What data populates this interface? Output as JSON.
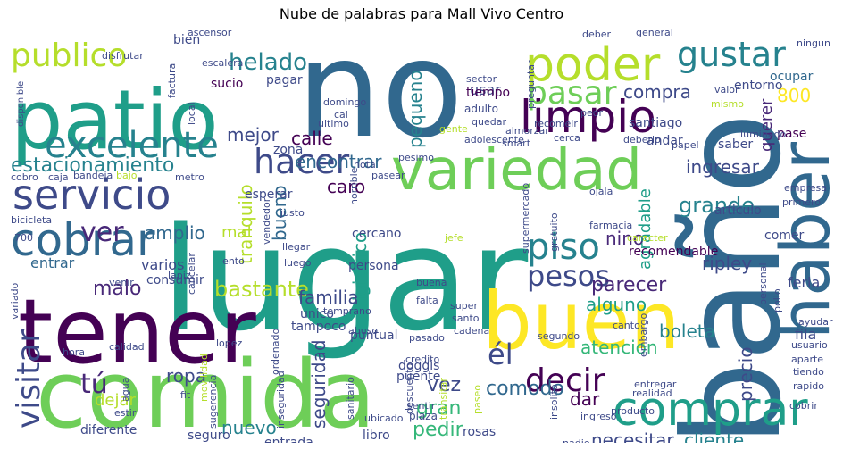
{
  "title": "Nube de palabras para Mall Vivo Centro",
  "palette": [
    "#440154",
    "#482878",
    "#3e4a89",
    "#31688e",
    "#26828e",
    "#1f9e89",
    "#35b779",
    "#6ece58",
    "#b5de2b",
    "#fde725"
  ],
  "words": [
    {
      "text": "lugar",
      "level": 10,
      "color": "#1f9e89"
    },
    {
      "text": "comida",
      "level": 10,
      "color": "#6ece58"
    },
    {
      "text": "no",
      "level": 10,
      "color": "#31688e"
    },
    {
      "text": "baño",
      "level": 10,
      "color": "#31688e"
    },
    {
      "text": "tener",
      "level": 9,
      "color": "#440154"
    },
    {
      "text": "patio",
      "level": 9,
      "color": "#1f9e89"
    },
    {
      "text": "haber",
      "level": 8,
      "color": "#31688e"
    },
    {
      "text": "buen",
      "level": 8,
      "color": "#fde725"
    },
    {
      "text": "variedad",
      "level": 7,
      "color": "#6ece58"
    },
    {
      "text": "poder",
      "level": 6,
      "color": "#b5de2b"
    },
    {
      "text": "comprar",
      "level": 6,
      "color": "#1f9e89"
    },
    {
      "text": "cobrar",
      "level": 6,
      "color": "#31688e"
    },
    {
      "text": "servicio",
      "level": 6,
      "color": "#3e4a89"
    },
    {
      "text": "limpio",
      "level": 6,
      "color": "#440154"
    },
    {
      "text": "excelente",
      "level": 5,
      "color": "#26828e"
    },
    {
      "text": "gustar",
      "level": 5,
      "color": "#26828e"
    },
    {
      "text": "publico",
      "level": 5,
      "color": "#b5de2b"
    },
    {
      "text": "hacer",
      "level": 5,
      "color": "#3e4a89"
    },
    {
      "text": "pasar",
      "level": 5,
      "color": "#6ece58"
    },
    {
      "text": "visitar",
      "level": 5,
      "color": "#3e4a89"
    },
    {
      "text": "decir",
      "level": 5,
      "color": "#440154"
    },
    {
      "text": "piso",
      "level": 5,
      "color": "#26828e"
    },
    {
      "text": "pesos",
      "level": 4,
      "color": "#3e4a89"
    },
    {
      "text": "él",
      "level": 4,
      "color": "#3e4a89"
    },
    {
      "text": "tú",
      "level": 4,
      "color": "#482878"
    },
    {
      "text": "ver",
      "level": 4,
      "color": "#482878"
    },
    {
      "text": "estacionamiento",
      "level": 3,
      "color": "#26828e"
    },
    {
      "text": "helado",
      "level": 3,
      "color": "#26828e"
    },
    {
      "text": "mejor",
      "level": 3,
      "color": "#3e4a89"
    },
    {
      "text": "grande",
      "level": 3,
      "color": "#26828e"
    },
    {
      "text": "comodo",
      "level": 3,
      "color": "#31688e"
    },
    {
      "text": "parecer",
      "level": 3,
      "color": "#482878"
    },
    {
      "text": "ripley",
      "level": 3,
      "color": "#3e4a89"
    },
    {
      "text": "ingresar",
      "level": 3,
      "color": "#3e4a89"
    },
    {
      "text": "boleta",
      "level": 3,
      "color": "#26828e"
    },
    {
      "text": "bastante",
      "level": 3,
      "color": "#b5de2b"
    },
    {
      "text": "malo",
      "level": 3,
      "color": "#482878"
    },
    {
      "text": "amplio",
      "level": 3,
      "color": "#31688e"
    },
    {
      "text": "bueno",
      "level": 3,
      "color": "#31688e"
    },
    {
      "text": "calle",
      "level": 3,
      "color": "#440154"
    },
    {
      "text": "encontrar",
      "level": 3,
      "color": "#31688e"
    },
    {
      "text": "pequeno",
      "level": 3,
      "color": "#26828e"
    },
    {
      "text": "compra",
      "level": 3,
      "color": "#3e4a89"
    },
    {
      "text": "800",
      "level": 3,
      "color": "#fde725"
    },
    {
      "text": "caro",
      "level": 3,
      "color": "#440154"
    },
    {
      "text": "nino",
      "level": 3,
      "color": "#482878"
    },
    {
      "text": "familia",
      "level": 3,
      "color": "#3e4a89"
    },
    {
      "text": "alguno",
      "level": 3,
      "color": "#1f9e89"
    },
    {
      "text": "vez",
      "level": 3,
      "color": "#3e4a89"
    },
    {
      "text": "gran",
      "level": 3,
      "color": "#35b779"
    },
    {
      "text": "pedir",
      "level": 3,
      "color": "#35b779"
    },
    {
      "text": "dar",
      "level": 3,
      "color": "#440154"
    },
    {
      "text": "ropa",
      "level": 3,
      "color": "#3e4a89"
    },
    {
      "text": "nuevo",
      "level": 3,
      "color": "#26828e"
    },
    {
      "text": "seguridad",
      "level": 3,
      "color": "#3e4a89"
    },
    {
      "text": "precio",
      "level": 3,
      "color": "#3e4a89"
    },
    {
      "text": "necesitar",
      "level": 3,
      "color": "#3e4a89"
    },
    {
      "text": "cliente",
      "level": 3,
      "color": "#26828e"
    },
    {
      "text": "dejar",
      "level": 3,
      "color": "#b5de2b"
    },
    {
      "text": "atencion",
      "level": 3,
      "color": "#35b779"
    },
    {
      "text": "higienico",
      "level": 3,
      "color": "#1f9e89"
    },
    {
      "text": "tranquilo",
      "level": 3,
      "color": "#b5de2b"
    },
    {
      "text": "mal",
      "level": 3,
      "color": "#b5de2b"
    },
    {
      "text": "varios",
      "level": 2,
      "color": "#3e4a89"
    },
    {
      "text": "entrar",
      "level": 2,
      "color": "#31688e"
    },
    {
      "text": "querer",
      "level": 2,
      "color": "#482878"
    },
    {
      "text": "comer",
      "level": 2,
      "color": "#3e4a89"
    },
    {
      "text": "feria",
      "level": 2,
      "color": "#3e4a89"
    },
    {
      "text": "fila",
      "level": 2,
      "color": "#3e4a89"
    },
    {
      "text": "agradable",
      "level": 2,
      "color": "#1f9e89"
    },
    {
      "text": "recomendable",
      "level": 2,
      "color": "#440154"
    },
    {
      "text": "bien",
      "level": 2,
      "color": "#3e4a89"
    },
    {
      "text": "sucio",
      "level": 2,
      "color": "#440154"
    },
    {
      "text": "pagar",
      "level": 2,
      "color": "#3e4a89"
    },
    {
      "text": "usar",
      "level": 2,
      "color": "#3e4a89"
    },
    {
      "text": "tiempo",
      "level": 2,
      "color": "#440154"
    },
    {
      "text": "andar",
      "level": 2,
      "color": "#3e4a89"
    },
    {
      "text": "saber",
      "level": 2,
      "color": "#3e4a89"
    },
    {
      "text": "santiago",
      "level": 2,
      "color": "#3e4a89"
    },
    {
      "text": "entorno",
      "level": 2,
      "color": "#3e4a89"
    },
    {
      "text": "ocupar",
      "level": 2,
      "color": "#31688e"
    },
    {
      "text": "pase",
      "level": 2,
      "color": "#440154"
    },
    {
      "text": "puente",
      "level": 2,
      "color": "#3e4a89"
    },
    {
      "text": "puntual",
      "level": 2,
      "color": "#3e4a89"
    },
    {
      "text": "rosas",
      "level": 2,
      "color": "#3e4a89"
    },
    {
      "text": "libro",
      "level": 2,
      "color": "#3e4a89"
    },
    {
      "text": "acceso",
      "level": 2,
      "color": "#3e4a89"
    },
    {
      "text": "diferente",
      "level": 2,
      "color": "#3e4a89"
    },
    {
      "text": "seguro",
      "level": 2,
      "color": "#3e4a89"
    },
    {
      "text": "entrada",
      "level": 2,
      "color": "#3e4a89"
    },
    {
      "text": "unico",
      "level": 2,
      "color": "#3e4a89"
    },
    {
      "text": "tampoco",
      "level": 2,
      "color": "#3e4a89"
    },
    {
      "text": "consumir",
      "level": 2,
      "color": "#3e4a89"
    },
    {
      "text": "doggis",
      "level": 2,
      "color": "#3e4a89"
    },
    {
      "text": "cercano",
      "level": 2,
      "color": "#3e4a89"
    },
    {
      "text": "persona",
      "level": 2,
      "color": "#3e4a89"
    },
    {
      "text": "esperar",
      "level": 2,
      "color": "#3e4a89"
    },
    {
      "text": "zona",
      "level": 2,
      "color": "#3e4a89"
    },
    {
      "text": "articulo",
      "level": 2,
      "color": "#3e4a89"
    },
    {
      "text": "ascensor",
      "level": 1,
      "color": "#3e4a89"
    },
    {
      "text": "escalera",
      "level": 1,
      "color": "#3e4a89"
    },
    {
      "text": "disfrutar",
      "level": 1,
      "color": "#3e4a89"
    },
    {
      "text": "factura",
      "level": 1,
      "color": "#3e4a89"
    },
    {
      "text": "local",
      "level": 1,
      "color": "#3e4a89"
    },
    {
      "text": "disponible",
      "level": 1,
      "color": "#3e4a89"
    },
    {
      "text": "domingo",
      "level": 1,
      "color": "#3e4a89"
    },
    {
      "text": "cal",
      "level": 1,
      "color": "#3e4a89"
    },
    {
      "text": "sector",
      "level": 1,
      "color": "#3e4a89"
    },
    {
      "text": "adulto",
      "level": 1,
      "color": "#3e4a89"
    },
    {
      "text": "quedar",
      "level": 1,
      "color": "#3e4a89"
    },
    {
      "text": "ultimo",
      "level": 1,
      "color": "#3e4a89"
    },
    {
      "text": "preguntar",
      "level": 1,
      "color": "#3e4a89"
    },
    {
      "text": "deber",
      "level": 1,
      "color": "#3e4a89"
    },
    {
      "text": "general",
      "level": 1,
      "color": "#3e4a89"
    },
    {
      "text": "ningun",
      "level": 1,
      "color": "#3e4a89"
    },
    {
      "text": "valor",
      "level": 1,
      "color": "#3e4a89"
    },
    {
      "text": "mismo",
      "level": 1,
      "color": "#b5de2b"
    },
    {
      "text": "peor",
      "level": 1,
      "color": "#3e4a89"
    },
    {
      "text": "recomeir",
      "level": 1,
      "color": "#3e4a89"
    },
    {
      "text": "almorzar",
      "level": 1,
      "color": "#3e4a89"
    },
    {
      "text": "adolescente",
      "level": 1,
      "color": "#3e4a89"
    },
    {
      "text": "gente",
      "level": 1,
      "color": "#b5de2b"
    },
    {
      "text": "smart",
      "level": 1,
      "color": "#3e4a89"
    },
    {
      "text": "cerca",
      "level": 1,
      "color": "#3e4a89"
    },
    {
      "text": "deberio",
      "level": 1,
      "color": "#3e4a89"
    },
    {
      "text": "papel",
      "level": 1,
      "color": "#3e4a89"
    },
    {
      "text": "iluminado",
      "level": 1,
      "color": "#3e4a89"
    },
    {
      "text": "cobro",
      "level": 1,
      "color": "#3e4a89"
    },
    {
      "text": "caja",
      "level": 1,
      "color": "#3e4a89"
    },
    {
      "text": "bandeja",
      "level": 1,
      "color": "#3e4a89"
    },
    {
      "text": "bajo",
      "level": 1,
      "color": "#b5de2b"
    },
    {
      "text": "metro",
      "level": 1,
      "color": "#3e4a89"
    },
    {
      "text": "bicicleta",
      "level": 1,
      "color": "#3e4a89"
    },
    {
      "text": "700",
      "level": 1,
      "color": "#3e4a89"
    },
    {
      "text": "lapiz",
      "level": 1,
      "color": "#3e4a89"
    },
    {
      "text": "cancelar",
      "level": 1,
      "color": "#3e4a89"
    },
    {
      "text": "lento",
      "level": 1,
      "color": "#3e4a89"
    },
    {
      "text": "justo",
      "level": 1,
      "color": "#3e4a89"
    },
    {
      "text": "vendedor",
      "level": 1,
      "color": "#3e4a89"
    },
    {
      "text": "llegar",
      "level": 1,
      "color": "#3e4a89"
    },
    {
      "text": "luego",
      "level": 1,
      "color": "#3e4a89"
    },
    {
      "text": "horrible",
      "level": 1,
      "color": "#3e4a89"
    },
    {
      "text": "pasear",
      "level": 1,
      "color": "#3e4a89"
    },
    {
      "text": "nota",
      "level": 1,
      "color": "#3e4a89"
    },
    {
      "text": "pesimo",
      "level": 1,
      "color": "#3e4a89"
    },
    {
      "text": "ojala",
      "level": 1,
      "color": "#3e4a89"
    },
    {
      "text": "farmacia",
      "level": 1,
      "color": "#3e4a89"
    },
    {
      "text": "caracter",
      "level": 1,
      "color": "#b5de2b"
    },
    {
      "text": "supermercado",
      "level": 1,
      "color": "#3e4a89"
    },
    {
      "text": "gratuito",
      "level": 1,
      "color": "#3e4a89"
    },
    {
      "text": "jefe",
      "level": 1,
      "color": "#b5de2b"
    },
    {
      "text": "buena",
      "level": 1,
      "color": "#3e4a89"
    },
    {
      "text": "falta",
      "level": 1,
      "color": "#3e4a89"
    },
    {
      "text": "super",
      "level": 1,
      "color": "#3e4a89"
    },
    {
      "text": "santo",
      "level": 1,
      "color": "#3e4a89"
    },
    {
      "text": "cadena",
      "level": 1,
      "color": "#3e4a89"
    },
    {
      "text": "empresa",
      "level": 1,
      "color": "#3e4a89"
    },
    {
      "text": "primero",
      "level": 1,
      "color": "#3e4a89"
    },
    {
      "text": "personal",
      "level": 1,
      "color": "#3e4a89"
    },
    {
      "text": "pollo",
      "level": 1,
      "color": "#3e4a89"
    },
    {
      "text": "ayudar",
      "level": 1,
      "color": "#3e4a89"
    },
    {
      "text": "canto",
      "level": 1,
      "color": "#3e4a89"
    },
    {
      "text": "embargo",
      "level": 1,
      "color": "#3e4a89"
    },
    {
      "text": "usuario",
      "level": 1,
      "color": "#3e4a89"
    },
    {
      "text": "aparte",
      "level": 1,
      "color": "#3e4a89"
    },
    {
      "text": "tiendo",
      "level": 1,
      "color": "#3e4a89"
    },
    {
      "text": "rapido",
      "level": 1,
      "color": "#3e4a89"
    },
    {
      "text": "realidad",
      "level": 1,
      "color": "#3e4a89"
    },
    {
      "text": "entregar",
      "level": 1,
      "color": "#3e4a89"
    },
    {
      "text": "cobrir",
      "level": 1,
      "color": "#3e4a89"
    },
    {
      "text": "lleno",
      "level": 1,
      "color": "#3e4a89"
    },
    {
      "text": "ingreso",
      "level": 1,
      "color": "#3e4a89"
    },
    {
      "text": "producto",
      "level": 1,
      "color": "#3e4a89"
    },
    {
      "text": "insolito",
      "level": 1,
      "color": "#3e4a89"
    },
    {
      "text": "paseo",
      "level": 1,
      "color": "#b5de2b"
    },
    {
      "text": "nadie",
      "level": 1,
      "color": "#3e4a89"
    },
    {
      "text": "inseguro",
      "level": 1,
      "color": "#3e4a89"
    },
    {
      "text": "plaza",
      "level": 1,
      "color": "#3e4a89"
    },
    {
      "text": "sentir",
      "level": 1,
      "color": "#3e4a89"
    },
    {
      "text": "transitar",
      "level": 1,
      "color": "#b5de2b"
    },
    {
      "text": "descuento",
      "level": 1,
      "color": "#3e4a89"
    },
    {
      "text": "ubicado",
      "level": 1,
      "color": "#3e4a89"
    },
    {
      "text": "sanitario",
      "level": 1,
      "color": "#3e4a89"
    },
    {
      "text": "inseguridad",
      "level": 1,
      "color": "#3e4a89"
    },
    {
      "text": "sugerencia",
      "level": 1,
      "color": "#3e4a89"
    },
    {
      "text": "estir",
      "level": 1,
      "color": "#3e4a89"
    },
    {
      "text": "fit",
      "level": 1,
      "color": "#3e4a89"
    },
    {
      "text": "agua",
      "level": 1,
      "color": "#3e4a89"
    },
    {
      "text": "movilidad",
      "level": 1,
      "color": "#b5de2b"
    },
    {
      "text": "lopez",
      "level": 1,
      "color": "#3e4a89"
    },
    {
      "text": "ordenado",
      "level": 1,
      "color": "#3e4a89"
    },
    {
      "text": "abuso",
      "level": 1,
      "color": "#3e4a89"
    },
    {
      "text": "credito",
      "level": 1,
      "color": "#3e4a89"
    },
    {
      "text": "pasado",
      "level": 1,
      "color": "#3e4a89"
    },
    {
      "text": "temprano",
      "level": 1,
      "color": "#3e4a89"
    },
    {
      "text": "segundo",
      "level": 1,
      "color": "#3e4a89"
    },
    {
      "text": "calidad",
      "level": 1,
      "color": "#3e4a89"
    },
    {
      "text": "hora",
      "level": 1,
      "color": "#3e4a89"
    },
    {
      "text": "variado",
      "level": 1,
      "color": "#3e4a89"
    },
    {
      "text": "venir",
      "level": 1,
      "color": "#3e4a89"
    }
  ]
}
